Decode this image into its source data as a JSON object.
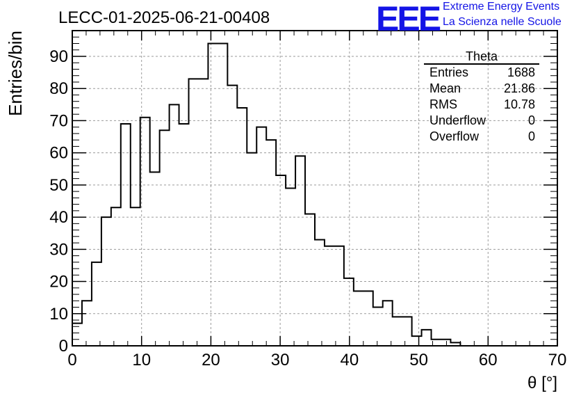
{
  "title": "LECC-01-2025-06-21-00408",
  "logo": {
    "mark": "EEE",
    "line1": "Extreme Energy Events",
    "line2": "La Scienza nelle Scuole"
  },
  "stats_box": {
    "name": "Theta",
    "rows": [
      {
        "key": "Entries",
        "value": "1688"
      },
      {
        "key": "Mean",
        "value": "21.86"
      },
      {
        "key": "RMS",
        "value": "10.78"
      },
      {
        "key": "Underflow",
        "value": "0"
      },
      {
        "key": "Overflow",
        "value": "0"
      }
    ]
  },
  "chart_data": {
    "type": "bar",
    "style": "histogram-step",
    "xlabel": "θ [°]",
    "ylabel": "Entries/bin",
    "xlim": [
      0,
      70
    ],
    "ylim": [
      0,
      98
    ],
    "xticks": [
      0,
      10,
      20,
      30,
      40,
      50,
      60,
      70
    ],
    "yticks": [
      0,
      10,
      20,
      30,
      40,
      50,
      60,
      70,
      80,
      90
    ],
    "grid": true,
    "bin_width": 1.4,
    "bin_low_edges": [
      0,
      1.4,
      2.8,
      4.2,
      5.6,
      7,
      8.4,
      9.8,
      11.2,
      12.6,
      14,
      15.4,
      16.8,
      18.2,
      19.6,
      21,
      22.4,
      23.8,
      25.2,
      26.6,
      28,
      29.4,
      30.8,
      32.2,
      33.6,
      35,
      36.4,
      37.8,
      39.2,
      40.6,
      42,
      43.4,
      44.8,
      46.2,
      47.6,
      49,
      50.4,
      51.8,
      53.2,
      54.6,
      56
    ],
    "values": [
      7,
      14,
      26,
      40,
      43,
      69,
      43,
      71,
      54,
      67,
      75,
      69,
      83,
      83,
      94,
      94,
      81,
      74,
      60,
      68,
      64,
      53,
      49,
      59,
      41,
      33,
      31,
      31,
      21,
      17,
      17,
      12,
      14,
      9,
      9,
      3,
      5,
      2,
      2,
      1,
      0
    ]
  }
}
